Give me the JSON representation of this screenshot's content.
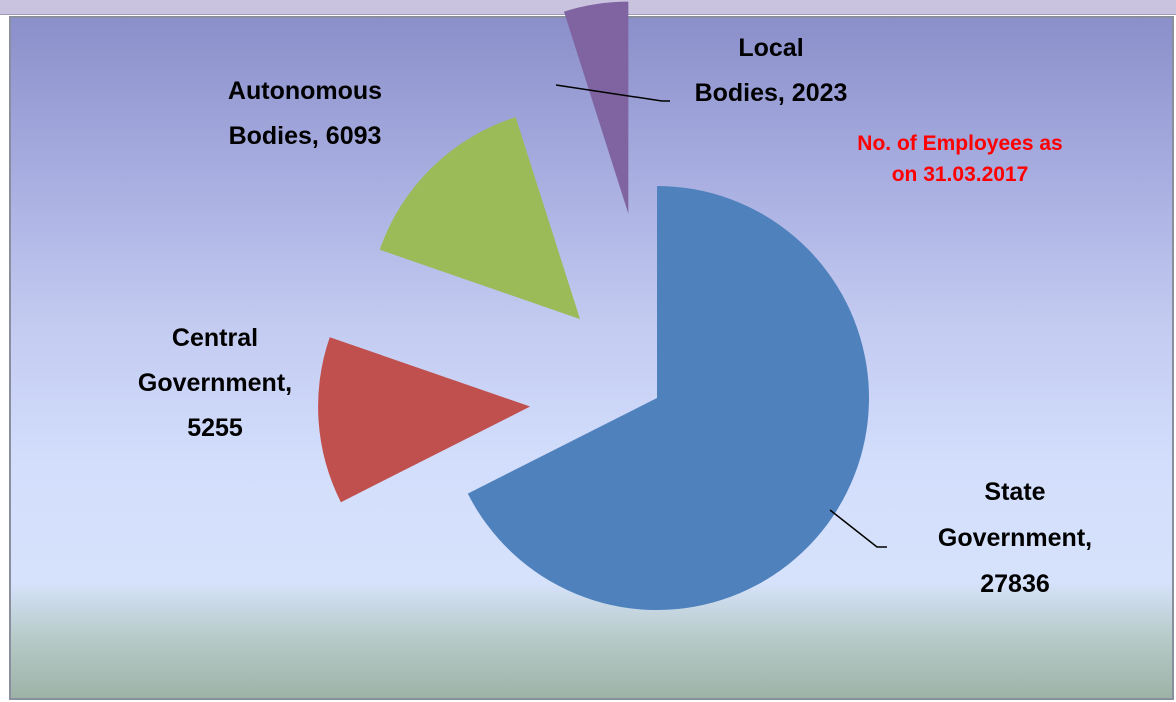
{
  "chart_data": {
    "type": "pie",
    "title": "",
    "note": [
      "No. of Employees as",
      "on 31.03.2017"
    ],
    "note_color": "#ff0000",
    "slices": [
      {
        "label": "State Government",
        "value": 27836,
        "color": "#4f81bd",
        "label_lines": [
          "State",
          "Government,",
          "27836"
        ]
      },
      {
        "label": "Central Government",
        "value": 5255,
        "color": "#c0504d",
        "label_lines": [
          "Central",
          "Government,",
          "5255"
        ]
      },
      {
        "label": "Autonomous Bodies",
        "value": 6093,
        "color": "#9bbb59",
        "label_lines": [
          "Autonomous",
          "Bodies, 6093"
        ]
      },
      {
        "label": "Local Bodies",
        "value": 2023,
        "color": "#8064a2",
        "label_lines": [
          "Local",
          "Bodies, 2023"
        ]
      }
    ],
    "legend": "none",
    "exploded": true
  }
}
